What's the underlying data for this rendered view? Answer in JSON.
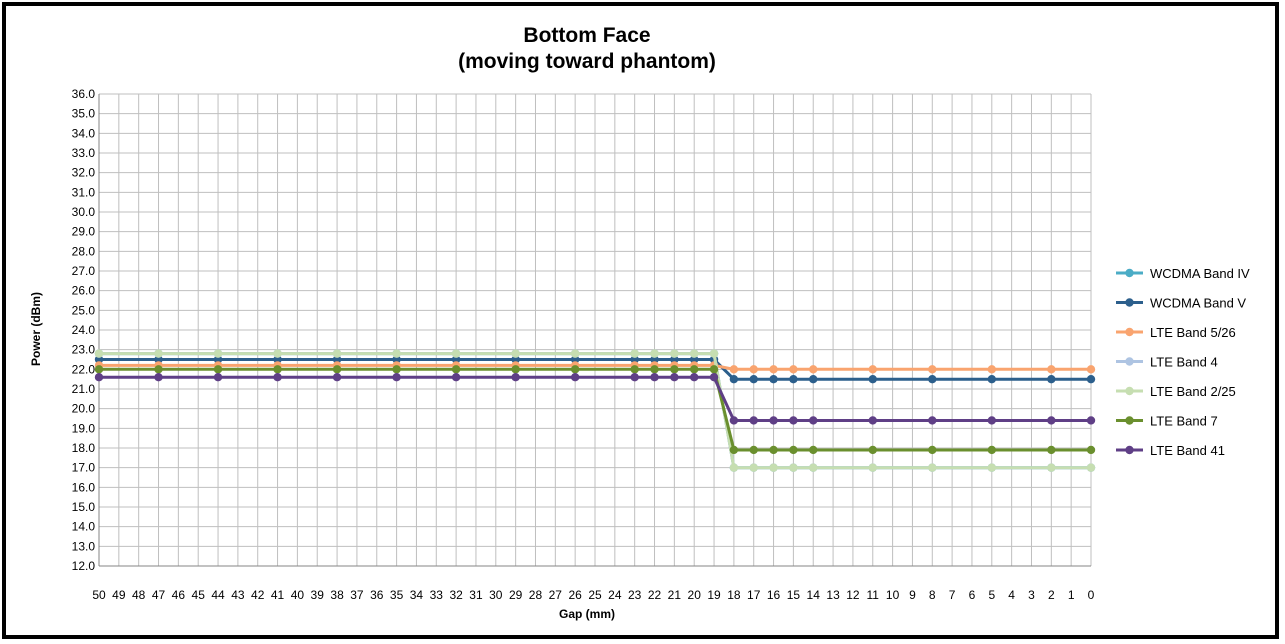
{
  "chart_data": {
    "type": "line",
    "title": "Bottom Face",
    "subtitle": "(moving toward phantom)",
    "xlabel": "Gap (mm)",
    "ylabel": "Power (dBm)",
    "ylim": [
      12.0,
      36.0
    ],
    "y_step": 1.0,
    "grid": true,
    "legend_position": "right",
    "x": [
      50,
      49,
      48,
      47,
      46,
      45,
      44,
      43,
      42,
      41,
      40,
      39,
      38,
      37,
      36,
      35,
      34,
      33,
      32,
      31,
      30,
      29,
      28,
      27,
      26,
      25,
      24,
      23,
      22,
      21,
      20,
      19,
      18,
      17,
      16,
      15,
      14,
      13,
      12,
      11,
      10,
      9,
      8,
      7,
      6,
      5,
      4,
      3,
      2,
      1,
      0
    ],
    "marker_x": [
      50,
      47,
      44,
      41,
      38,
      35,
      32,
      29,
      26,
      23,
      22,
      21,
      20,
      19,
      18,
      17,
      16,
      15,
      14,
      11,
      8,
      5,
      2,
      0
    ],
    "series": [
      {
        "name": "WCDMA Band IV",
        "color": "#4bacc6",
        "high": 22.8,
        "low": 17.0
      },
      {
        "name": "WCDMA Band V",
        "color": "#2c5f8c",
        "high": 22.5,
        "low": 21.5
      },
      {
        "name": "LTE Band 5/26",
        "color": "#f9a46f",
        "high": 22.2,
        "low": 22.0
      },
      {
        "name": "LTE Band 4",
        "color": "#aec4e2",
        "high": 22.8,
        "low": 17.0
      },
      {
        "name": "LTE Band 2/25",
        "color": "#c6deb1",
        "high": 22.8,
        "low": 17.0
      },
      {
        "name": "LTE Band 7",
        "color": "#6a8f2e",
        "high": 22.0,
        "low": 17.9
      },
      {
        "name": "LTE Band 41",
        "color": "#5f3f86",
        "high": 21.6,
        "low": 19.4
      }
    ],
    "drop_after_x": 19
  }
}
